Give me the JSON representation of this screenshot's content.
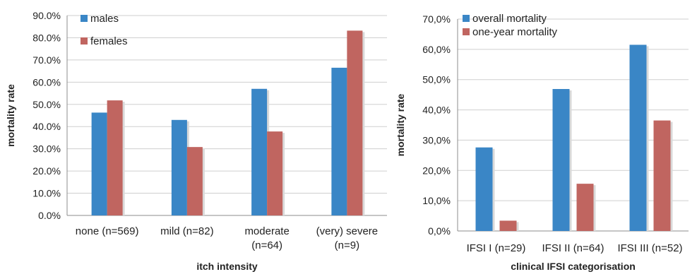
{
  "colors": {
    "blue": "#3a86c6",
    "red": "#c06560",
    "grid": "#cfcfcf",
    "axis": "#8c8c8c",
    "text": "#222222"
  },
  "chart_data": [
    {
      "type": "bar",
      "xlabel": "itch intensity",
      "ylabel": "mortality rate",
      "categories": [
        [
          "none (n=569)"
        ],
        [
          "mild (n=82)"
        ],
        [
          "moderate",
          "(n=64)"
        ],
        [
          "(very) severe",
          "(n=9)"
        ]
      ],
      "series": [
        {
          "name": "males",
          "color": "#3a86c6",
          "values": [
            46.3,
            43.0,
            57.0,
            66.5
          ]
        },
        {
          "name": "females",
          "color": "#c06560",
          "values": [
            51.8,
            30.8,
            37.8,
            83.2
          ]
        }
      ],
      "ylim": [
        0,
        90
      ],
      "yticks": [
        "0.0%",
        "10.0%",
        "20.0%",
        "30.0%",
        "40.0%",
        "50.0%",
        "60.0%",
        "70.0%",
        "80.0%",
        "90.0%"
      ],
      "grid": true,
      "legend": "top-left"
    },
    {
      "type": "bar",
      "xlabel": "clinical IFSI categorisation",
      "ylabel": "mortality rate",
      "categories": [
        [
          "IFSI I (n=29)"
        ],
        [
          "IFSI II (n=64)"
        ],
        [
          "IFSI III (n=52)"
        ]
      ],
      "series": [
        {
          "name": "overall mortality",
          "color": "#3a86c6",
          "values": [
            27.6,
            46.9,
            61.5
          ]
        },
        {
          "name": "one-year mortality",
          "color": "#c06560",
          "values": [
            3.4,
            15.6,
            36.5
          ]
        }
      ],
      "ylim": [
        0,
        70
      ],
      "yticks": [
        "0,0%",
        "10,0%",
        "20,0%",
        "30,0%",
        "40,0%",
        "50,0%",
        "60,0%",
        "70,0%"
      ],
      "grid": true,
      "legend": "top-left"
    }
  ]
}
